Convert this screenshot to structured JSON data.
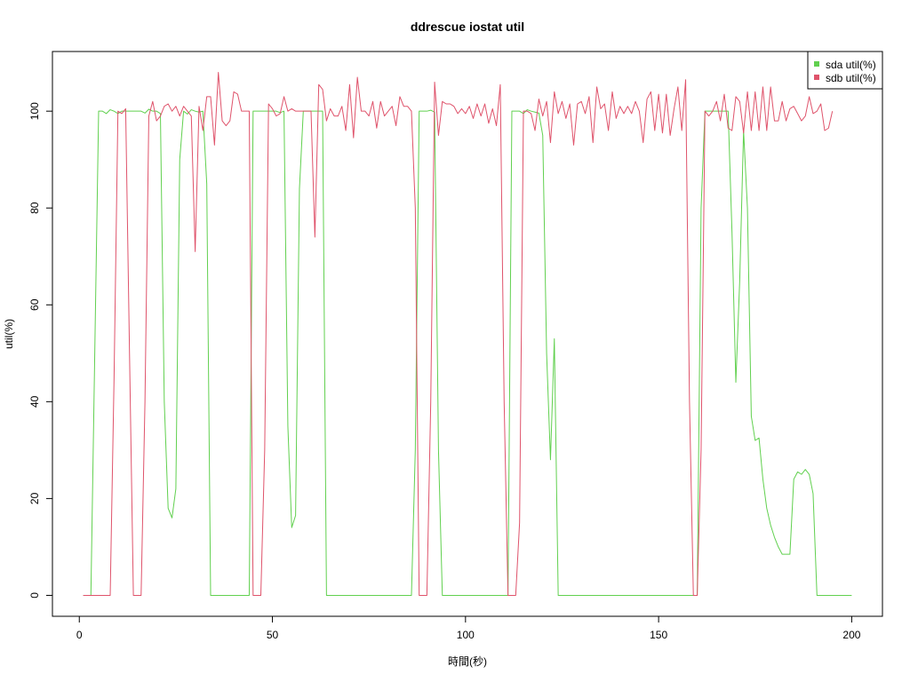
{
  "chart_data": {
    "type": "line",
    "title": "ddrescue iostat util",
    "xlabel": "時間(秒)",
    "ylabel": "util(%)",
    "xlim": [
      1,
      200
    ],
    "ylim": [
      0,
      108
    ],
    "x_ticks": [
      "0",
      "50",
      "100",
      "150",
      "200"
    ],
    "y_ticks": [
      "0",
      "20",
      "40",
      "60",
      "80",
      "100"
    ],
    "legend_position": "top-right",
    "grid": false,
    "series": [
      {
        "name": "sda util(%)",
        "color": "#61D04F",
        "points": [
          [
            1,
            0
          ],
          [
            3,
            0
          ],
          [
            5,
            100
          ],
          [
            6,
            100
          ],
          [
            7,
            99.5
          ],
          [
            8,
            100.3
          ],
          [
            9,
            100
          ],
          [
            10,
            99.5
          ],
          [
            11,
            100
          ],
          [
            12,
            100
          ],
          [
            13,
            100
          ],
          [
            14,
            100
          ],
          [
            15,
            100
          ],
          [
            16,
            100
          ],
          [
            17,
            99.6
          ],
          [
            18,
            100.4
          ],
          [
            19,
            100
          ],
          [
            20,
            100
          ],
          [
            21,
            99.5
          ],
          [
            22,
            40
          ],
          [
            23,
            18
          ],
          [
            24,
            16
          ],
          [
            25,
            22
          ],
          [
            26,
            90
          ],
          [
            27,
            100
          ],
          [
            28,
            99.4
          ],
          [
            29,
            100.3
          ],
          [
            30,
            100
          ],
          [
            31,
            99.8
          ],
          [
            32,
            100
          ],
          [
            33,
            85
          ],
          [
            34,
            0
          ],
          [
            44,
            0
          ],
          [
            45,
            100
          ],
          [
            46,
            100
          ],
          [
            47,
            100
          ],
          [
            48,
            100
          ],
          [
            49,
            100
          ],
          [
            50,
            100
          ],
          [
            51,
            100
          ],
          [
            52,
            99.7
          ],
          [
            53,
            100
          ],
          [
            54,
            35
          ],
          [
            55,
            14
          ],
          [
            56,
            16.5
          ],
          [
            57,
            84
          ],
          [
            58,
            100
          ],
          [
            59,
            100
          ],
          [
            60,
            100
          ],
          [
            61,
            100
          ],
          [
            62,
            100
          ],
          [
            63,
            100
          ],
          [
            64,
            0
          ],
          [
            86,
            0
          ],
          [
            87,
            30
          ],
          [
            88,
            100
          ],
          [
            89,
            100
          ],
          [
            90,
            100
          ],
          [
            91,
            100.2
          ],
          [
            92,
            99.8
          ],
          [
            93,
            30
          ],
          [
            94,
            0
          ],
          [
            111,
            0
          ],
          [
            112,
            100
          ],
          [
            113,
            100
          ],
          [
            114,
            100
          ],
          [
            115,
            99.5
          ],
          [
            116,
            100.3
          ],
          [
            117,
            100
          ],
          [
            118,
            99.8
          ],
          [
            119,
            99.6
          ],
          [
            120,
            95
          ],
          [
            121,
            50
          ],
          [
            122,
            28
          ],
          [
            123,
            53
          ],
          [
            124,
            0
          ],
          [
            160,
            0
          ],
          [
            161,
            80
          ],
          [
            162,
            100
          ],
          [
            163,
            100
          ],
          [
            164,
            100
          ],
          [
            165,
            100
          ],
          [
            166,
            100
          ],
          [
            167,
            100
          ],
          [
            168,
            100
          ],
          [
            169,
            75
          ],
          [
            170,
            44
          ],
          [
            171,
            65
          ],
          [
            172,
            96
          ],
          [
            173,
            80
          ],
          [
            174,
            37
          ],
          [
            175,
            32
          ],
          [
            176,
            32.5
          ],
          [
            177,
            24
          ],
          [
            178,
            18
          ],
          [
            179,
            14.5
          ],
          [
            180,
            12
          ],
          [
            181,
            10
          ],
          [
            182,
            8.5
          ],
          [
            183,
            8.5
          ],
          [
            184,
            8.5
          ],
          [
            185,
            24
          ],
          [
            186,
            25.5
          ],
          [
            187,
            25
          ],
          [
            188,
            26
          ],
          [
            189,
            25
          ],
          [
            190,
            21
          ],
          [
            191,
            0
          ],
          [
            200,
            0
          ]
        ]
      },
      {
        "name": "sdb util(%)",
        "color": "#DF536B",
        "points": [
          [
            1,
            0
          ],
          [
            8,
            0
          ],
          [
            9,
            45
          ],
          [
            10,
            100
          ],
          [
            11,
            99.5
          ],
          [
            12,
            100.5
          ],
          [
            13,
            50
          ],
          [
            14,
            0
          ],
          [
            15,
            0
          ],
          [
            16,
            0
          ],
          [
            17,
            40
          ],
          [
            18,
            99
          ],
          [
            19,
            102
          ],
          [
            20,
            98
          ],
          [
            21,
            99
          ],
          [
            22,
            101
          ],
          [
            23,
            101.5
          ],
          [
            24,
            100
          ],
          [
            25,
            101
          ],
          [
            26,
            99
          ],
          [
            27,
            101
          ],
          [
            28,
            100
          ],
          [
            29,
            99
          ],
          [
            30,
            71
          ],
          [
            31,
            101
          ],
          [
            32,
            96
          ],
          [
            33,
            103
          ],
          [
            34,
            103
          ],
          [
            35,
            93
          ],
          [
            36,
            108
          ],
          [
            37,
            98
          ],
          [
            38,
            97
          ],
          [
            39,
            98
          ],
          [
            40,
            104
          ],
          [
            41,
            103.5
          ],
          [
            42,
            100
          ],
          [
            43,
            100
          ],
          [
            44,
            100
          ],
          [
            45,
            0
          ],
          [
            46,
            0
          ],
          [
            47,
            0
          ],
          [
            48,
            30
          ],
          [
            49,
            101.5
          ],
          [
            50,
            100.5
          ],
          [
            51,
            99
          ],
          [
            52,
            99.5
          ],
          [
            53,
            103
          ],
          [
            54,
            100
          ],
          [
            55,
            100.5
          ],
          [
            56,
            100
          ],
          [
            57,
            100
          ],
          [
            58,
            100
          ],
          [
            59,
            100
          ],
          [
            60,
            100
          ],
          [
            61,
            74
          ],
          [
            62,
            105.5
          ],
          [
            63,
            104.5
          ],
          [
            64,
            98
          ],
          [
            65,
            100.5
          ],
          [
            66,
            99
          ],
          [
            67,
            99
          ],
          [
            68,
            101
          ],
          [
            69,
            96
          ],
          [
            70,
            105.5
          ],
          [
            71,
            94.5
          ],
          [
            72,
            107
          ],
          [
            73,
            100
          ],
          [
            74,
            100
          ],
          [
            75,
            99
          ],
          [
            76,
            102
          ],
          [
            77,
            96.5
          ],
          [
            78,
            102
          ],
          [
            79,
            99
          ],
          [
            80,
            100
          ],
          [
            81,
            101
          ],
          [
            82,
            97
          ],
          [
            83,
            103
          ],
          [
            84,
            101
          ],
          [
            85,
            101
          ],
          [
            86,
            100
          ],
          [
            87,
            80
          ],
          [
            88,
            0
          ],
          [
            89,
            0
          ],
          [
            90,
            0
          ],
          [
            91,
            40
          ],
          [
            92,
            106
          ],
          [
            93,
            95
          ],
          [
            94,
            102
          ],
          [
            95,
            101.5
          ],
          [
            96,
            101.5
          ],
          [
            97,
            101
          ],
          [
            98,
            99.5
          ],
          [
            99,
            100.5
          ],
          [
            100,
            99.5
          ],
          [
            101,
            101
          ],
          [
            102,
            98.5
          ],
          [
            103,
            101.5
          ],
          [
            104,
            99
          ],
          [
            105,
            101.5
          ],
          [
            106,
            97.5
          ],
          [
            107,
            100.5
          ],
          [
            108,
            97
          ],
          [
            109,
            105.5
          ],
          [
            110,
            40
          ],
          [
            111,
            0
          ],
          [
            112,
            0
          ],
          [
            113,
            0
          ],
          [
            114,
            15
          ],
          [
            115,
            100
          ],
          [
            116,
            100
          ],
          [
            117,
            99.5
          ],
          [
            118,
            96
          ],
          [
            119,
            102.5
          ],
          [
            120,
            99
          ],
          [
            121,
            102
          ],
          [
            122,
            93.5
          ],
          [
            123,
            104
          ],
          [
            124,
            99.5
          ],
          [
            125,
            102
          ],
          [
            126,
            98.5
          ],
          [
            127,
            101.5
          ],
          [
            128,
            93
          ],
          [
            129,
            101.5
          ],
          [
            130,
            102
          ],
          [
            131,
            99.5
          ],
          [
            132,
            103
          ],
          [
            133,
            93.5
          ],
          [
            134,
            105
          ],
          [
            135,
            100.5
          ],
          [
            136,
            101.5
          ],
          [
            137,
            96
          ],
          [
            138,
            104
          ],
          [
            139,
            98.5
          ],
          [
            140,
            101
          ],
          [
            141,
            99.5
          ],
          [
            142,
            101
          ],
          [
            143,
            99.5
          ],
          [
            144,
            102
          ],
          [
            145,
            100
          ],
          [
            146,
            93.5
          ],
          [
            147,
            102.5
          ],
          [
            148,
            104
          ],
          [
            149,
            96
          ],
          [
            150,
            103.5
          ],
          [
            151,
            95.5
          ],
          [
            152,
            103.5
          ],
          [
            153,
            95
          ],
          [
            154,
            100.5
          ],
          [
            155,
            105
          ],
          [
            156,
            96
          ],
          [
            157,
            106.5
          ],
          [
            158,
            40
          ],
          [
            159,
            0
          ],
          [
            160,
            0
          ],
          [
            161,
            30
          ],
          [
            162,
            100
          ],
          [
            163,
            99
          ],
          [
            164,
            100
          ],
          [
            165,
            102
          ],
          [
            166,
            98
          ],
          [
            167,
            103.5
          ],
          [
            168,
            96.5
          ],
          [
            169,
            96
          ],
          [
            170,
            103
          ],
          [
            171,
            102
          ],
          [
            172,
            95.5
          ],
          [
            173,
            104
          ],
          [
            174,
            96
          ],
          [
            175,
            104
          ],
          [
            176,
            96
          ],
          [
            177,
            105
          ],
          [
            178,
            96
          ],
          [
            179,
            105
          ],
          [
            180,
            98
          ],
          [
            181,
            98
          ],
          [
            182,
            102
          ],
          [
            183,
            98
          ],
          [
            184,
            100.5
          ],
          [
            185,
            101
          ],
          [
            186,
            99.5
          ],
          [
            187,
            98
          ],
          [
            188,
            99
          ],
          [
            189,
            103
          ],
          [
            190,
            99.5
          ],
          [
            191,
            100
          ],
          [
            192,
            101.5
          ],
          [
            193,
            96
          ],
          [
            194,
            96.5
          ],
          [
            195,
            100
          ]
        ]
      }
    ]
  }
}
